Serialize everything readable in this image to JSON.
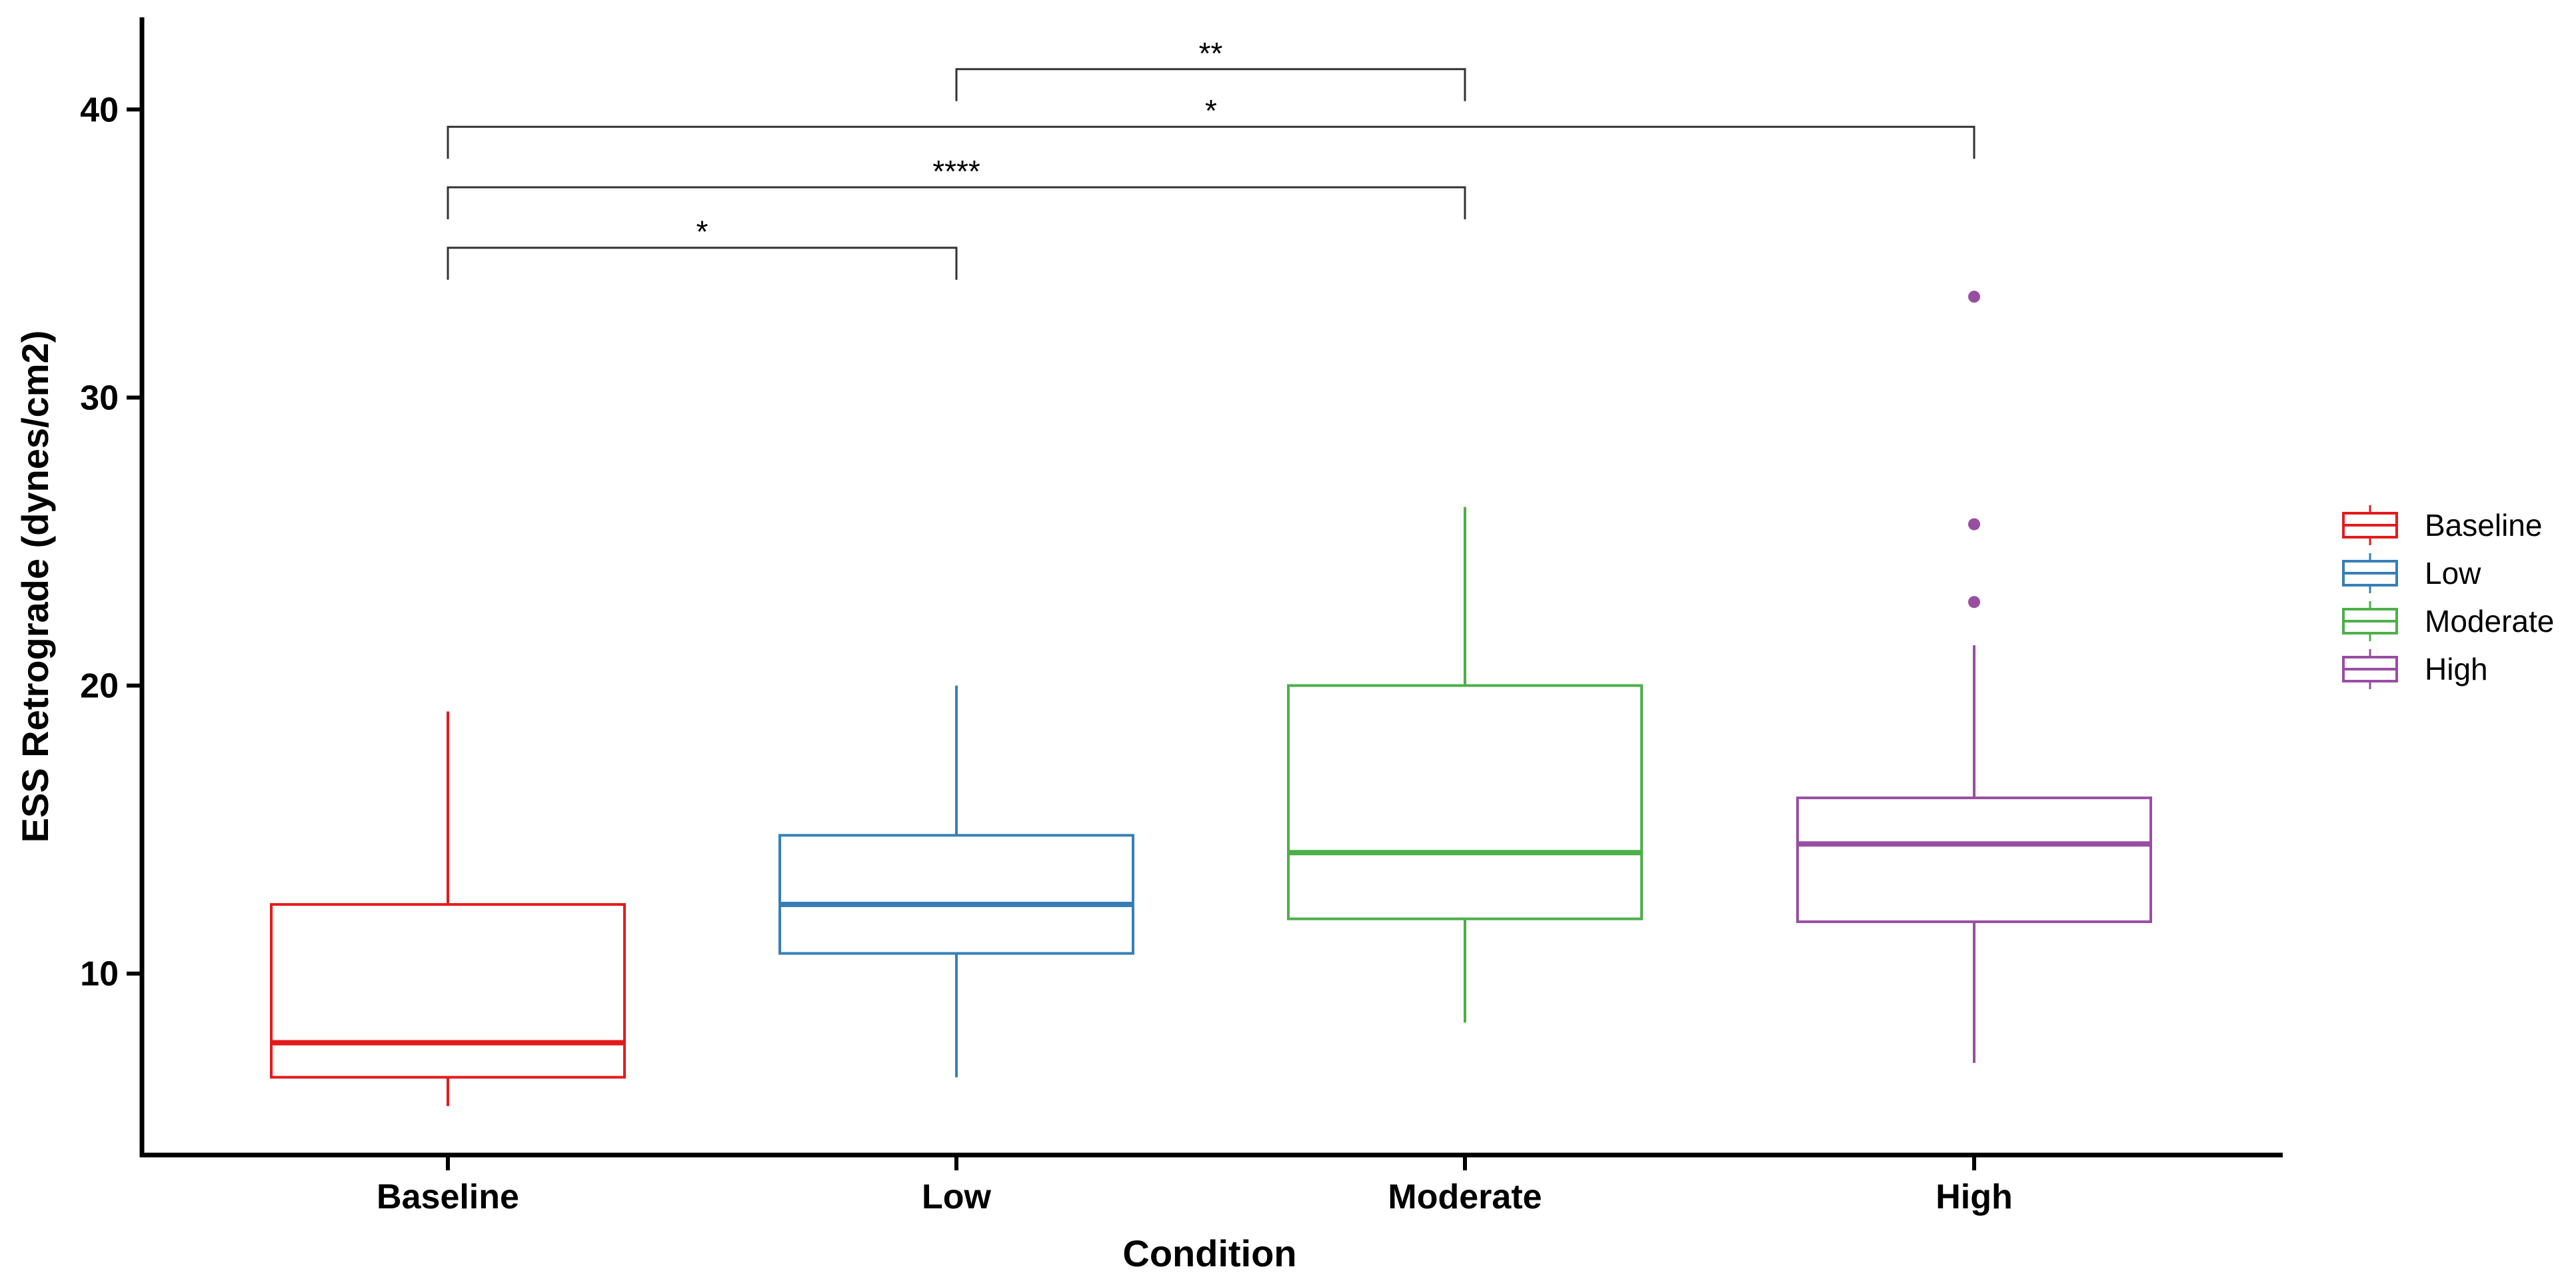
{
  "chart_data": {
    "type": "box",
    "title": "",
    "xlabel": "Condition",
    "ylabel": "ESS Retrograde (dynes/cm2)",
    "ylim": [
      3.7,
      43.2
    ],
    "yticks": [
      10,
      20,
      30,
      40
    ],
    "categories": [
      "Baseline",
      "Low",
      "Moderate",
      "High"
    ],
    "series": [
      {
        "name": "Baseline",
        "color": "#E41A1C",
        "whisker_low": 5.4,
        "q1": 6.4,
        "median": 7.6,
        "q3": 12.4,
        "whisker_high": 19.1,
        "outliers": []
      },
      {
        "name": "Low",
        "color": "#377EB8",
        "whisker_low": 6.4,
        "q1": 10.7,
        "median": 12.4,
        "q3": 14.8,
        "whisker_high": 20.0,
        "outliers": []
      },
      {
        "name": "Moderate",
        "color": "#4DAF4A",
        "whisker_low": 8.3,
        "q1": 11.9,
        "median": 14.2,
        "q3": 20.0,
        "whisker_high": 26.2,
        "outliers": []
      },
      {
        "name": "High",
        "color": "#984EA3",
        "whisker_low": 6.9,
        "q1": 11.8,
        "median": 14.5,
        "q3": 16.1,
        "whisker_high": 21.4,
        "outliers": [
          22.9,
          25.6,
          33.5
        ]
      }
    ],
    "significance": [
      {
        "from": "Low",
        "to": "Moderate",
        "label": "**",
        "y": 41.4
      },
      {
        "from": "Baseline",
        "to": "High",
        "label": "*",
        "y": 39.4
      },
      {
        "from": "Baseline",
        "to": "Moderate",
        "label": "****",
        "y": 37.3
      },
      {
        "from": "Baseline",
        "to": "Low",
        "label": "*",
        "y": 35.2
      }
    ],
    "legend": {
      "position": "right",
      "entries": [
        "Baseline",
        "Low",
        "Moderate",
        "High"
      ]
    },
    "grid": false
  }
}
